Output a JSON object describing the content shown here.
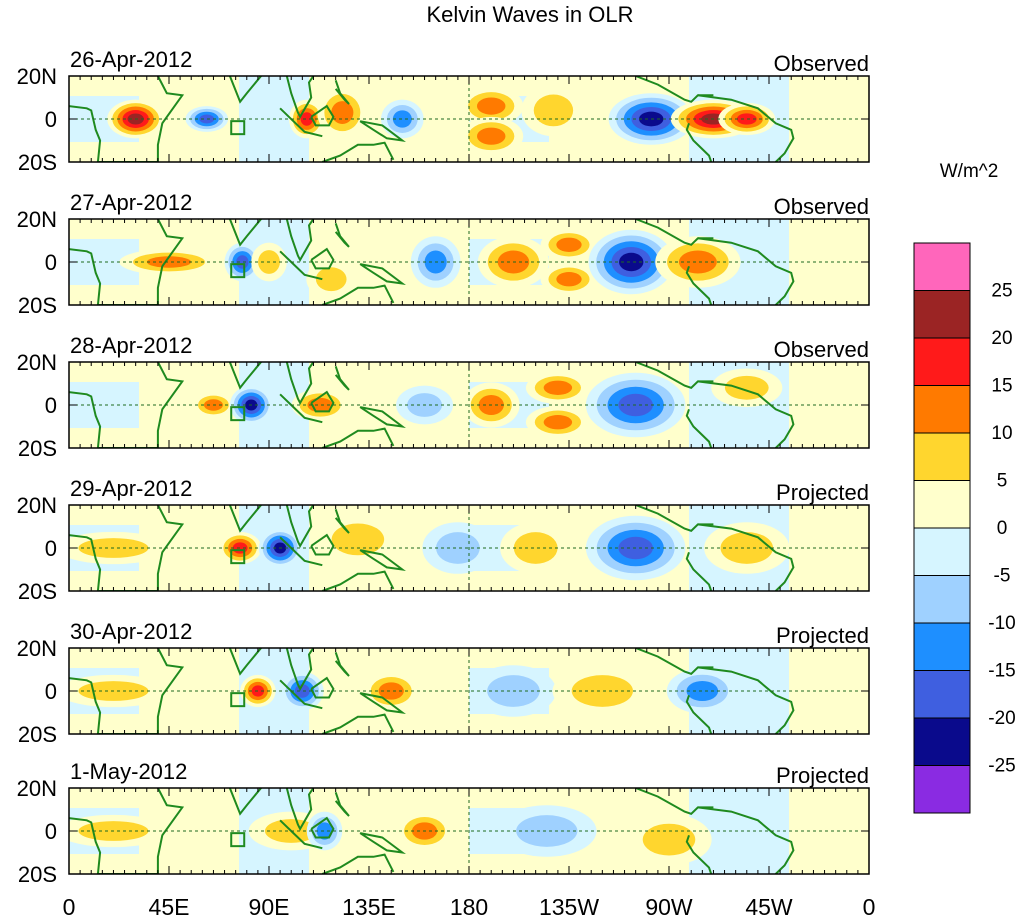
{
  "chart_data": {
    "type": "heatmap",
    "title": "Kelvin Waves in OLR",
    "units": "W/m^2",
    "x_ticks": [
      "0",
      "45E",
      "90E",
      "135E",
      "180",
      "135W",
      "90W",
      "45W",
      "0"
    ],
    "y_ticks": [
      "20N",
      "0",
      "20S"
    ],
    "xlim": [
      0,
      360
    ],
    "ylim": [
      -20,
      20
    ],
    "colorbar": {
      "levels": [
        "25",
        "20",
        "15",
        "10",
        "5",
        "0",
        "-5",
        "-10",
        "-15",
        "-20",
        "-25"
      ],
      "colors": [
        "#ff66bb",
        "#9b2424",
        "#ff1a1a",
        "#ff7a00",
        "#ffd62e",
        "#ffffcc",
        "#d6f5ff",
        "#9fd1ff",
        "#1e8fff",
        "#3f5fe0",
        "#0a0a8c",
        "#8a2be2"
      ]
    },
    "panels": [
      {
        "date": "26-Apr-2012",
        "status": "Observed",
        "anomalies": [
          {
            "lon": 30,
            "lat": 0,
            "value": 22,
            "w": 8,
            "h": 6
          },
          {
            "lon": 62,
            "lat": 0,
            "value": -20,
            "w": 6,
            "h": 4
          },
          {
            "lon": 107,
            "lat": 0,
            "value": 18,
            "w": 5,
            "h": 6
          },
          {
            "lon": 123,
            "lat": 3,
            "value": 14,
            "w": 7,
            "h": 8
          },
          {
            "lon": 150,
            "lat": 0,
            "value": -12,
            "w": 6,
            "h": 6
          },
          {
            "lon": 190,
            "lat": 6,
            "value": 13,
            "w": 9,
            "h": 6
          },
          {
            "lon": 190,
            "lat": -8,
            "value": 12,
            "w": 9,
            "h": 6
          },
          {
            "lon": 218,
            "lat": 4,
            "value": 10,
            "w": 9,
            "h": 8
          },
          {
            "lon": 262,
            "lat": 0,
            "value": -23,
            "w": 12,
            "h": 8
          },
          {
            "lon": 290,
            "lat": 0,
            "value": 22,
            "w": 12,
            "h": 6
          },
          {
            "lon": 305,
            "lat": 0,
            "value": 18,
            "w": 8,
            "h": 5
          }
        ]
      },
      {
        "date": "27-Apr-2012",
        "status": "Observed",
        "anomalies": [
          {
            "lon": 45,
            "lat": 0,
            "value": 12,
            "w": 14,
            "h": 4
          },
          {
            "lon": 78,
            "lat": 0,
            "value": -18,
            "w": 5,
            "h": 6
          },
          {
            "lon": 90,
            "lat": 0,
            "value": 10,
            "w": 5,
            "h": 6
          },
          {
            "lon": 118,
            "lat": -8,
            "value": 9,
            "w": 7,
            "h": 6
          },
          {
            "lon": 165,
            "lat": 0,
            "value": -14,
            "w": 7,
            "h": 8
          },
          {
            "lon": 200,
            "lat": 0,
            "value": 14,
            "w": 10,
            "h": 8
          },
          {
            "lon": 225,
            "lat": 8,
            "value": 12,
            "w": 8,
            "h": 5
          },
          {
            "lon": 225,
            "lat": -8,
            "value": 12,
            "w": 8,
            "h": 5
          },
          {
            "lon": 253,
            "lat": 0,
            "value": -24,
            "w": 12,
            "h": 10
          },
          {
            "lon": 283,
            "lat": 0,
            "value": 13,
            "w": 12,
            "h": 8
          }
        ]
      },
      {
        "date": "28-Apr-2012",
        "status": "Observed",
        "anomalies": [
          {
            "lon": 65,
            "lat": 0,
            "value": 15,
            "w": 6,
            "h": 4
          },
          {
            "lon": 82,
            "lat": 0,
            "value": -24,
            "w": 6,
            "h": 6
          },
          {
            "lon": 113,
            "lat": 0,
            "value": 12,
            "w": 8,
            "h": 5
          },
          {
            "lon": 160,
            "lat": 0,
            "value": -10,
            "w": 8,
            "h": 6
          },
          {
            "lon": 190,
            "lat": 0,
            "value": 13,
            "w": 8,
            "h": 7
          },
          {
            "lon": 220,
            "lat": 8,
            "value": 11,
            "w": 9,
            "h": 5
          },
          {
            "lon": 220,
            "lat": -8,
            "value": 11,
            "w": 9,
            "h": 5
          },
          {
            "lon": 255,
            "lat": 0,
            "value": -18,
            "w": 14,
            "h": 10
          },
          {
            "lon": 305,
            "lat": 8,
            "value": 6,
            "w": 10,
            "h": 6
          }
        ]
      },
      {
        "date": "29-Apr-2012",
        "status": "Projected",
        "anomalies": [
          {
            "lon": 20,
            "lat": 0,
            "value": 7,
            "w": 16,
            "h": 5
          },
          {
            "lon": 77,
            "lat": 0,
            "value": 19,
            "w": 6,
            "h": 5
          },
          {
            "lon": 95,
            "lat": 0,
            "value": -22,
            "w": 6,
            "h": 6
          },
          {
            "lon": 130,
            "lat": 4,
            "value": 8,
            "w": 12,
            "h": 8
          },
          {
            "lon": 175,
            "lat": 0,
            "value": -9,
            "w": 10,
            "h": 8
          },
          {
            "lon": 210,
            "lat": 0,
            "value": 8,
            "w": 10,
            "h": 8
          },
          {
            "lon": 255,
            "lat": 0,
            "value": -16,
            "w": 14,
            "h": 10
          },
          {
            "lon": 305,
            "lat": 0,
            "value": 6,
            "w": 12,
            "h": 8
          }
        ]
      },
      {
        "date": "30-Apr-2012",
        "status": "Projected",
        "anomalies": [
          {
            "lon": 20,
            "lat": 0,
            "value": 7,
            "w": 16,
            "h": 5
          },
          {
            "lon": 85,
            "lat": 0,
            "value": 17,
            "w": 5,
            "h": 5
          },
          {
            "lon": 105,
            "lat": 0,
            "value": -18,
            "w": 6,
            "h": 6
          },
          {
            "lon": 145,
            "lat": 0,
            "value": 14,
            "w": 8,
            "h": 6
          },
          {
            "lon": 200,
            "lat": 0,
            "value": -6,
            "w": 12,
            "h": 8
          },
          {
            "lon": 240,
            "lat": 0,
            "value": 6,
            "w": 14,
            "h": 8
          },
          {
            "lon": 285,
            "lat": 0,
            "value": -12,
            "w": 10,
            "h": 7
          }
        ]
      },
      {
        "date": "1-May-2012",
        "status": "Projected",
        "anomalies": [
          {
            "lon": 20,
            "lat": 0,
            "value": 6,
            "w": 16,
            "h": 5
          },
          {
            "lon": 100,
            "lat": 0,
            "value": 8,
            "w": 12,
            "h": 6
          },
          {
            "lon": 115,
            "lat": 0,
            "value": -15,
            "w": 5,
            "h": 6
          },
          {
            "lon": 160,
            "lat": 0,
            "value": 14,
            "w": 8,
            "h": 6
          },
          {
            "lon": 215,
            "lat": 0,
            "value": -6,
            "w": 14,
            "h": 8
          },
          {
            "lon": 270,
            "lat": -4,
            "value": 7,
            "w": 12,
            "h": 8
          }
        ]
      }
    ]
  }
}
